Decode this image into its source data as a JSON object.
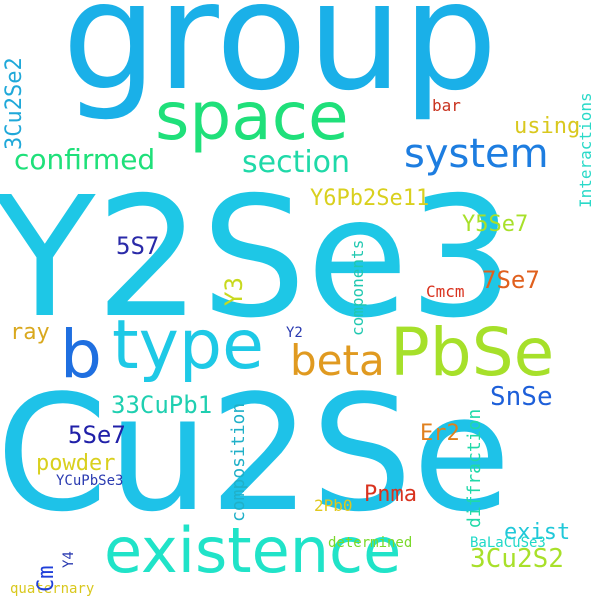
{
  "words": {
    "group": {
      "text": "group",
      "color": "#1ab0e8"
    },
    "y2se3": {
      "text": "Y2Se3",
      "color": "#1ec7e6"
    },
    "cu2se": {
      "text": "Cu2Se",
      "color": "#1ec2e8"
    },
    "space": {
      "text": "space",
      "color": "#1fe07a"
    },
    "existence": {
      "text": "existence",
      "color": "#20e3c8"
    },
    "type": {
      "text": "type",
      "color": "#1ec9e6"
    },
    "pbse": {
      "text": "PbSe",
      "color": "#a6e02a"
    },
    "b": {
      "text": "b",
      "color": "#1f6fe0"
    },
    "system": {
      "text": "system",
      "color": "#1d7de0"
    },
    "confirmed": {
      "text": "confirmed",
      "color": "#1fe07a"
    },
    "section": {
      "text": "section",
      "color": "#1fd9a8"
    },
    "beta": {
      "text": "beta",
      "color": "#e09a20"
    },
    "y6pb2se11": {
      "text": "Y6Pb2Se11",
      "color": "#d9d01e"
    },
    "y5se7": {
      "text": "Y5Se7",
      "color": "#a8e02a"
    },
    "sevense7": {
      "text": "7Se7",
      "color": "#e0601e"
    },
    "cmcm": {
      "text": "Cmcm",
      "color": "#d9321e"
    },
    "snse": {
      "text": "SnSe",
      "color": "#1d5fd9"
    },
    "thirtythreecupb1": {
      "text": "33CuPb1",
      "color": "#1fcfb0"
    },
    "fivese7": {
      "text": "5Se7",
      "color": "#2020a8"
    },
    "fives7": {
      "text": "5S7",
      "color": "#2a2aa8"
    },
    "using": {
      "text": "using",
      "color": "#d9c81e"
    },
    "bar": {
      "text": "bar",
      "color": "#c8321e"
    },
    "threecu2se2": {
      "text": "3Cu2Se2",
      "color": "#1fa8d9"
    },
    "interactions": {
      "text": "Interactions",
      "color": "#2ad9c8"
    },
    "y3": {
      "text": "Y3",
      "color": "#c8d91e"
    },
    "ray": {
      "text": "ray",
      "color": "#d9a81e"
    },
    "y2": {
      "text": "Y2",
      "color": "#2a3ab0"
    },
    "components": {
      "text": "components",
      "color": "#20c8b0"
    },
    "composition": {
      "text": "composition",
      "color": "#20b0c8"
    },
    "powder": {
      "text": "powder",
      "color": "#d9d01e"
    },
    "er2": {
      "text": "Er2",
      "color": "#e0801e"
    },
    "diffraction": {
      "text": "diffraction",
      "color": "#20d9a8"
    },
    "pnma": {
      "text": "Pnma",
      "color": "#d9321e"
    },
    "ycupbse3": {
      "text": "YCuPbSe3",
      "color": "#2a3ab0"
    },
    "cm": {
      "text": "Cm",
      "color": "#1f3fd9"
    },
    "y4": {
      "text": "Y4",
      "color": "#2a3ab0"
    },
    "twopb0": {
      "text": "2Pb0",
      "color": "#e0c81e"
    },
    "exist": {
      "text": "exist",
      "color": "#20c8d9"
    },
    "threecu2s2": {
      "text": "3Cu2S2",
      "color": "#a8e02a"
    },
    "determined": {
      "text": "determined",
      "color": "#7ad92a"
    },
    "balacuse3": {
      "text": "BaLaCuSe3",
      "color": "#20d9c8"
    },
    "quaternary": {
      "text": "quaternary",
      "color": "#d9c81e"
    }
  }
}
